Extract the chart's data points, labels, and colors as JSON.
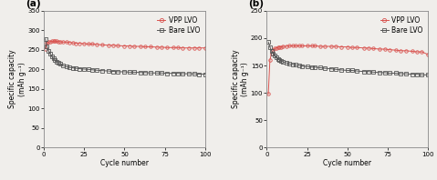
{
  "panel_a": {
    "title": "(a)",
    "xlabel": "Cycle number",
    "ylabel": "Specific capacity\n(mAh g⁻¹)",
    "xlim": [
      0,
      100
    ],
    "ylim": [
      0,
      350
    ],
    "yticks": [
      0,
      50,
      100,
      150,
      200,
      250,
      300,
      350
    ],
    "xticks": [
      0,
      25,
      50,
      75,
      100
    ],
    "vpp_lvo": {
      "x": [
        1,
        2,
        3,
        4,
        5,
        6,
        7,
        8,
        9,
        10,
        12,
        14,
        16,
        18,
        20,
        22,
        25,
        28,
        30,
        33,
        36,
        40,
        43,
        46,
        50,
        53,
        56,
        60,
        63,
        66,
        70,
        73,
        76,
        80,
        83,
        86,
        90,
        93,
        96,
        100
      ],
      "y": [
        253,
        268,
        270,
        271,
        272,
        272,
        272,
        272,
        271,
        271,
        270,
        270,
        269,
        268,
        267,
        267,
        266,
        265,
        265,
        264,
        263,
        262,
        262,
        261,
        260,
        260,
        259,
        259,
        258,
        258,
        257,
        257,
        256,
        256,
        256,
        255,
        255,
        255,
        255,
        255
      ]
    },
    "bare_lvo": {
      "x": [
        1,
        2,
        3,
        4,
        5,
        6,
        7,
        8,
        9,
        10,
        12,
        14,
        16,
        18,
        20,
        22,
        25,
        28,
        30,
        33,
        36,
        40,
        43,
        46,
        50,
        53,
        56,
        60,
        63,
        66,
        70,
        73,
        76,
        80,
        83,
        86,
        90,
        93,
        96,
        100
      ],
      "y": [
        278,
        260,
        248,
        240,
        233,
        228,
        224,
        220,
        217,
        214,
        210,
        207,
        205,
        204,
        203,
        202,
        201,
        200,
        199,
        198,
        197,
        196,
        195,
        194,
        194,
        193,
        193,
        192,
        192,
        191,
        191,
        191,
        190,
        190,
        190,
        189,
        189,
        189,
        188,
        188
      ]
    }
  },
  "panel_b": {
    "title": "(b)",
    "xlabel": "Cycle number",
    "ylabel": "Specific capacity\n(mAh g⁻¹)",
    "xlim": [
      0,
      100
    ],
    "ylim": [
      0,
      250
    ],
    "yticks": [
      0,
      50,
      100,
      150,
      200,
      250
    ],
    "xticks": [
      0,
      25,
      50,
      75,
      100
    ],
    "vpp_lvo": {
      "x": [
        1,
        2,
        3,
        4,
        5,
        6,
        7,
        8,
        9,
        10,
        12,
        14,
        16,
        18,
        20,
        22,
        25,
        28,
        30,
        33,
        36,
        40,
        43,
        46,
        50,
        53,
        56,
        60,
        63,
        66,
        70,
        73,
        76,
        80,
        83,
        86,
        90,
        93,
        96,
        100
      ],
      "y": [
        98,
        160,
        172,
        178,
        181,
        182,
        183,
        184,
        184,
        185,
        185,
        186,
        186,
        186,
        186,
        186,
        186,
        186,
        186,
        185,
        185,
        185,
        185,
        184,
        184,
        183,
        183,
        182,
        182,
        181,
        180,
        180,
        179,
        178,
        177,
        177,
        176,
        175,
        175,
        170
      ]
    },
    "bare_lvo": {
      "x": [
        1,
        2,
        3,
        4,
        5,
        6,
        7,
        8,
        9,
        10,
        12,
        14,
        16,
        18,
        20,
        22,
        25,
        28,
        30,
        33,
        36,
        40,
        43,
        46,
        50,
        53,
        56,
        60,
        63,
        66,
        70,
        73,
        76,
        80,
        83,
        86,
        90,
        93,
        96,
        100
      ],
      "y": [
        193,
        184,
        177,
        172,
        168,
        165,
        162,
        160,
        158,
        157,
        155,
        153,
        152,
        151,
        150,
        149,
        148,
        147,
        147,
        146,
        145,
        144,
        143,
        142,
        141,
        141,
        140,
        139,
        139,
        138,
        137,
        137,
        136,
        136,
        135,
        135,
        134,
        134,
        133,
        133
      ]
    }
  },
  "vpp_color": "#d9534f",
  "bare_color": "#555555",
  "vpp_label": "VPP LVO",
  "bare_label": "Bare LVO",
  "marker_size": 2.5,
  "line_width": 0.7,
  "bg_color": "#f0eeeb",
  "legend_fontsize": 5.5,
  "axis_fontsize": 5.5,
  "tick_fontsize": 5,
  "title_fontsize": 7.5
}
